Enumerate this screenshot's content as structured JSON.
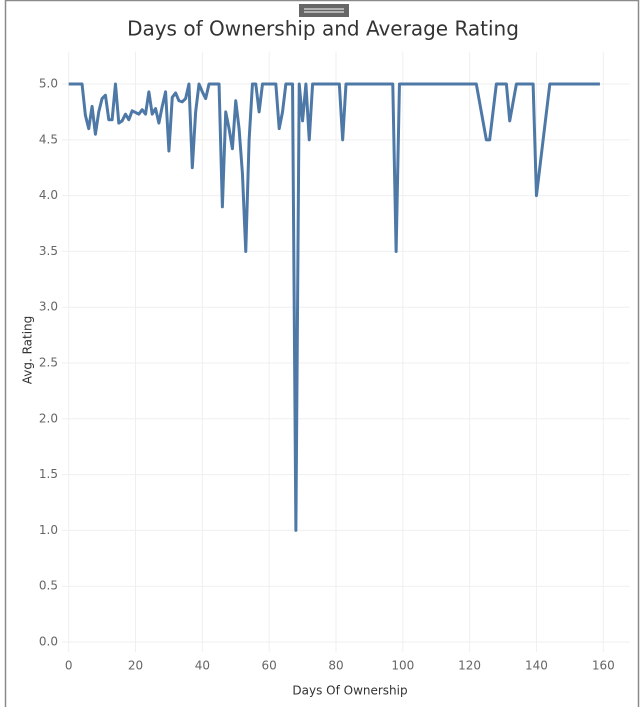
{
  "chart_data": {
    "type": "line",
    "title": "Days of Ownership and Average Rating",
    "x_label": "Days Of Ownership",
    "y_label": "Avg. Rating",
    "x": [
      0,
      4,
      5,
      6,
      7,
      8,
      9,
      10,
      11,
      12,
      13,
      14,
      15,
      16,
      17,
      18,
      19,
      21,
      22,
      23,
      24,
      25,
      26,
      27,
      28,
      29,
      30,
      31,
      32,
      33,
      34,
      35,
      36,
      37,
      38,
      39,
      40,
      41,
      42,
      45,
      46,
      47,
      48,
      49,
      50,
      51,
      52,
      53,
      54,
      55,
      56,
      57,
      58,
      62,
      63,
      64,
      65,
      67,
      68,
      69,
      70,
      71,
      72,
      73,
      81,
      82,
      83,
      97,
      98,
      99,
      122,
      125,
      126,
      128,
      131,
      132,
      134,
      139,
      140,
      144,
      159
    ],
    "series": [
      {
        "name": "Avg. Rating",
        "color": "#4e79a7",
        "values": [
          5.0,
          5.0,
          4.72,
          4.6,
          4.8,
          4.55,
          4.75,
          4.87,
          4.9,
          4.68,
          4.68,
          5.0,
          4.65,
          4.67,
          4.73,
          4.68,
          4.76,
          4.73,
          4.77,
          4.73,
          4.93,
          4.73,
          4.78,
          4.65,
          4.8,
          4.93,
          4.4,
          4.88,
          4.92,
          4.85,
          4.84,
          4.87,
          5.0,
          4.25,
          4.75,
          5.0,
          4.93,
          4.87,
          5.0,
          5.0,
          3.9,
          4.75,
          4.6,
          4.42,
          4.85,
          4.6,
          4.2,
          3.5,
          4.5,
          5.0,
          5.0,
          4.75,
          5.0,
          5.0,
          4.6,
          4.75,
          5.0,
          5.0,
          1.0,
          5.0,
          4.67,
          5.0,
          4.5,
          5.0,
          5.0,
          4.5,
          5.0,
          5.0,
          3.5,
          5.0,
          5.0,
          4.5,
          4.5,
          5.0,
          5.0,
          4.67,
          5.0,
          5.0,
          4.0,
          5.0,
          5.0
        ]
      }
    ],
    "xlim": [
      -2,
      168
    ],
    "xticks": [
      0,
      20,
      40,
      60,
      80,
      100,
      120,
      140,
      160
    ],
    "ylim": [
      0,
      5.2
    ],
    "yticks": [
      {
        "value": 0,
        "label": "0.0"
      },
      {
        "value": 0.5,
        "label": "0.5"
      },
      {
        "value": 1,
        "label": "1.0"
      },
      {
        "value": 1.5,
        "label": "1.5"
      },
      {
        "value": 2,
        "label": "2.0"
      },
      {
        "value": 2.5,
        "label": "2.5"
      },
      {
        "value": 3,
        "label": "3.0"
      },
      {
        "value": 3.5,
        "label": "3.5"
      },
      {
        "value": 4,
        "label": "4.0"
      },
      {
        "value": 4.5,
        "label": "4.5"
      },
      {
        "value": 5,
        "label": "5.0"
      }
    ],
    "grid": true
  }
}
